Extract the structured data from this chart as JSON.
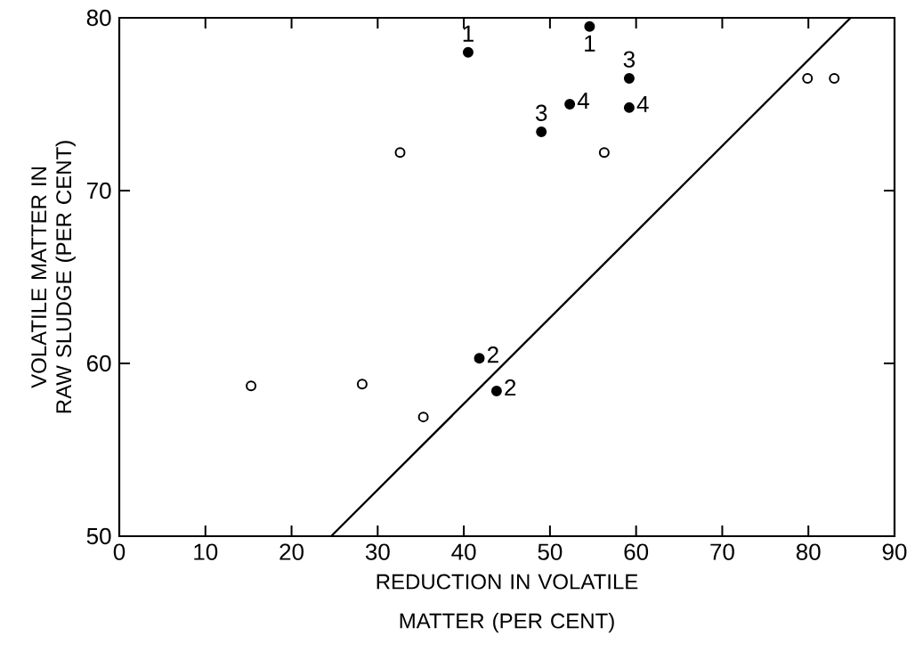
{
  "chart_data": {
    "type": "scatter",
    "xlabel": "REDUCTION IN VOLATILE MATTER (PER CENT)",
    "ylabel": "VOLATILE MATTER IN RAW SLUDGE (PER CENT)",
    "xlim": [
      0,
      90
    ],
    "ylim": [
      50,
      80
    ],
    "xticks": [
      0,
      10,
      20,
      30,
      40,
      50,
      60,
      70,
      80,
      90
    ],
    "yticks": [
      50,
      60,
      70,
      80
    ],
    "grid": false,
    "series": [
      {
        "marker": "circle",
        "color": "#ffffff",
        "x": [
          15.3,
          28.2,
          35.3,
          32.6,
          56.3,
          79.9,
          83.0
        ],
        "values": [
          58.7,
          58.8,
          56.9,
          72.2,
          72.2,
          76.5,
          76.5
        ]
      },
      {
        "marker": "circle",
        "color": "#000000",
        "x": [
          40.5,
          54.6,
          49.0,
          52.3,
          59.2,
          59.2,
          41.8,
          43.8
        ],
        "values": [
          78.0,
          79.5,
          73.4,
          75.0,
          76.5,
          74.8,
          60.3,
          58.4
        ]
      },
      {
        "type": "line",
        "color": "#000000",
        "marker": "none",
        "line_style": "solid",
        "x": [
          24.6,
          84.9
        ],
        "values": [
          50,
          80
        ]
      }
    ],
    "annotations": [
      {
        "text": "1",
        "x": 40.5,
        "y": 78.0
      },
      {
        "text": "1",
        "x": 54.6,
        "y": 79.5
      },
      {
        "text": "3",
        "x": 49.0,
        "y": 73.4
      },
      {
        "text": "4",
        "x": 52.3,
        "y": 75.0
      },
      {
        "text": "3",
        "x": 59.2,
        "y": 76.5
      },
      {
        "text": "4",
        "x": 59.2,
        "y": 74.8
      },
      {
        "text": "2",
        "x": 41.8,
        "y": 60.3
      },
      {
        "text": "2",
        "x": 43.8,
        "y": 58.4
      }
    ]
  }
}
